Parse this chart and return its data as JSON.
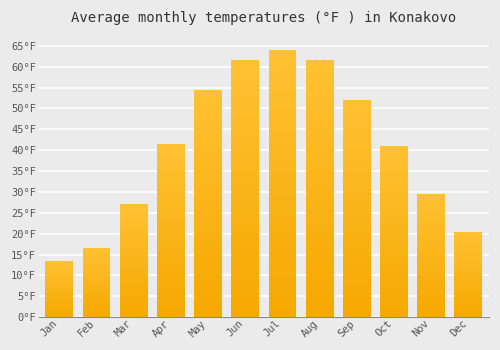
{
  "title": "Average monthly temperatures (°F ) in Konakovo",
  "months": [
    "Jan",
    "Feb",
    "Mar",
    "Apr",
    "May",
    "Jun",
    "Jul",
    "Aug",
    "Sep",
    "Oct",
    "Nov",
    "Dec"
  ],
  "values": [
    13.5,
    16.5,
    27.0,
    41.5,
    54.5,
    61.5,
    64.0,
    61.5,
    52.0,
    41.0,
    29.5,
    20.5
  ],
  "bar_color_top": "#FFC133",
  "bar_color_bottom": "#F5A800",
  "ylim": [
    0,
    68
  ],
  "yticks": [
    0,
    5,
    10,
    15,
    20,
    25,
    30,
    35,
    40,
    45,
    50,
    55,
    60,
    65
  ],
  "background_color": "#ebebeb",
  "grid_color": "#ffffff",
  "title_fontsize": 10,
  "tick_fontsize": 7.5,
  "bar_width": 0.75
}
